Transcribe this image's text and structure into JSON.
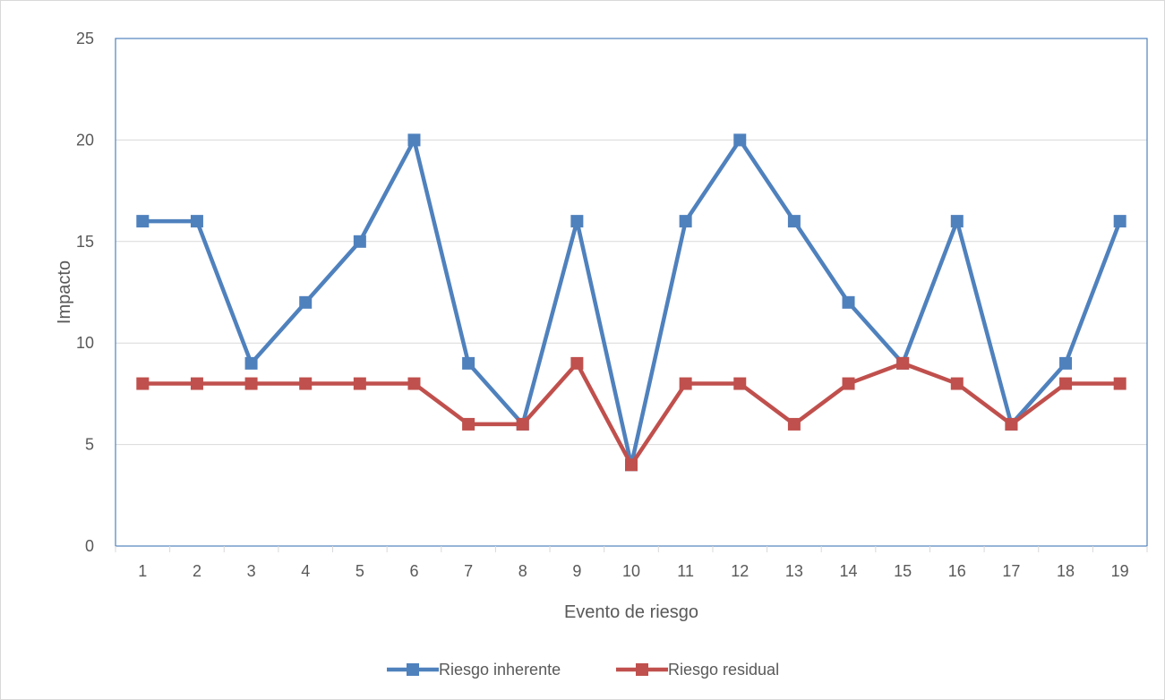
{
  "chart_data": {
    "type": "line",
    "title": "",
    "xlabel": "Evento de riesgo",
    "ylabel": "Impacto",
    "categories": [
      "1",
      "2",
      "3",
      "4",
      "5",
      "6",
      "7",
      "8",
      "9",
      "10",
      "11",
      "12",
      "13",
      "14",
      "15",
      "16",
      "17",
      "18",
      "19"
    ],
    "ylim": [
      0,
      25
    ],
    "yticks": [
      "0",
      "5",
      "10",
      "15",
      "20",
      "25"
    ],
    "grid": true,
    "legend_position": "bottom",
    "series": [
      {
        "name": "Riesgo inherente",
        "color": "#4f81bd",
        "values": [
          16,
          16,
          9,
          12,
          15,
          20,
          9,
          6,
          16,
          4,
          16,
          20,
          16,
          12,
          9,
          16,
          6,
          9,
          16
        ]
      },
      {
        "name": "Riesgo residual",
        "color": "#c0504d",
        "values": [
          8,
          8,
          8,
          8,
          8,
          8,
          6,
          6,
          9,
          4,
          8,
          8,
          6,
          8,
          9,
          8,
          6,
          8,
          8
        ]
      }
    ]
  }
}
